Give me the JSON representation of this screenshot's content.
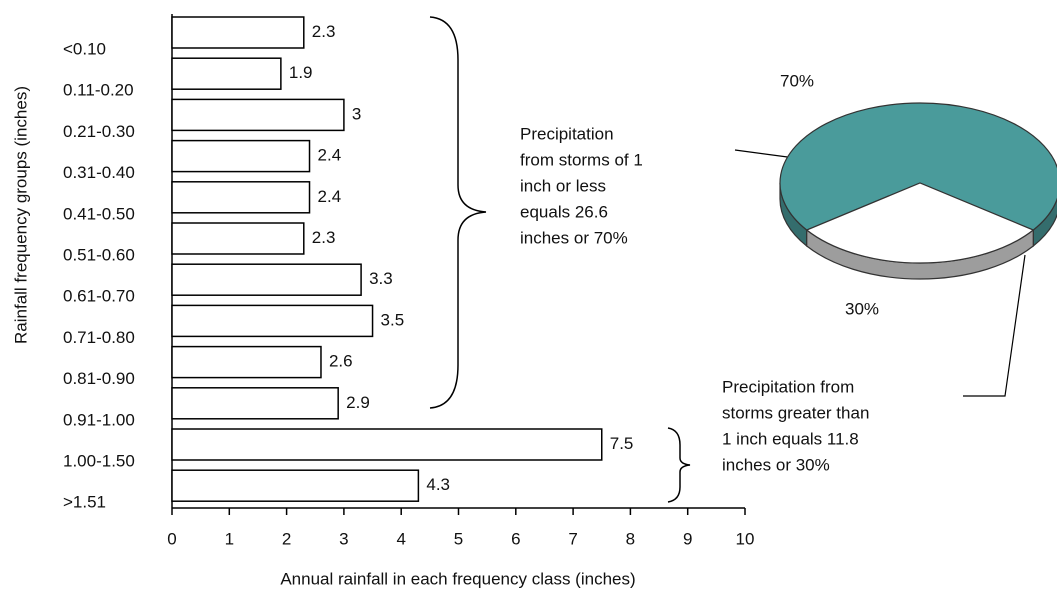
{
  "chart_data": [
    {
      "type": "bar",
      "x_label": "Annual rainfall in each frequency class (inches)",
      "y_label": "Rainfall frequency groups (inches)",
      "categories": [
        "<0.10",
        "0.11-0.20",
        "0.21-0.30",
        "0.31-0.40",
        "0.41-0.50",
        "0.51-0.60",
        "0.61-0.70",
        "0.71-0.80",
        "0.81-0.90",
        "0.91-1.00",
        "1.00-1.50",
        ">1.51"
      ],
      "values": [
        2.3,
        1.9,
        3,
        2.4,
        2.4,
        2.3,
        3.3,
        3.5,
        2.6,
        2.9,
        7.5,
        4.3
      ],
      "color": "#ffffff",
      "xlim": [
        0,
        10
      ],
      "xticks": [
        0,
        1,
        2,
        3,
        4,
        5,
        6,
        7,
        8,
        9,
        10
      ],
      "annotations": [
        {
          "lines": [
            "Precipitation",
            "from storms of 1",
            "inch or less",
            "equals 26.6",
            "inches or 70%"
          ]
        },
        {
          "lines": [
            "Precipitation from",
            "storms greater than",
            "1 inch equals 11.8",
            "inches or 30%"
          ]
        }
      ]
    },
    {
      "type": "pie",
      "values": [
        70,
        30
      ],
      "value_labels": [
        "70%",
        "30%"
      ],
      "colors": [
        "#4a9b9b",
        "#ffffff"
      ]
    }
  ]
}
